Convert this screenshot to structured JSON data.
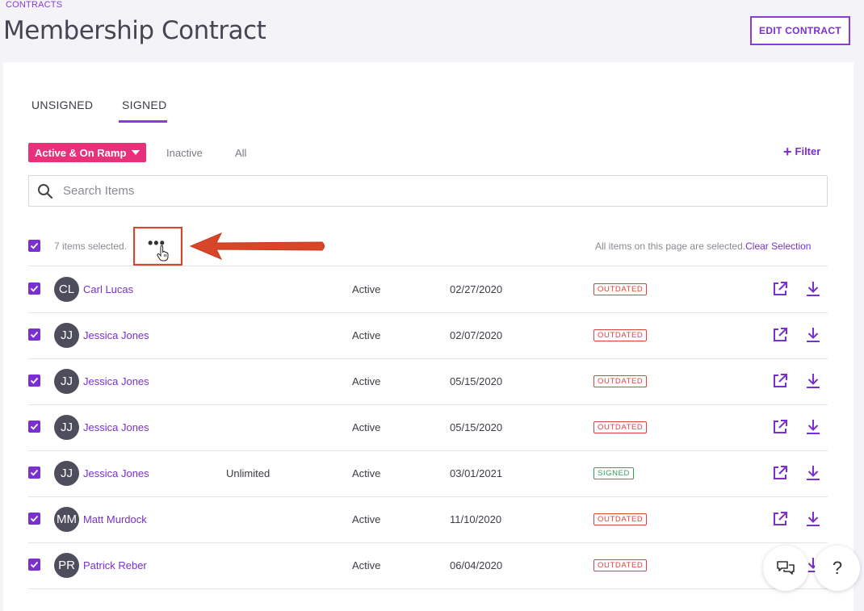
{
  "breadcrumb": "CONTRACTS",
  "page_title": "Membership Contract",
  "edit_button": "EDIT CONTRACT",
  "tabs": [
    {
      "label": "UNSIGNED",
      "active": false
    },
    {
      "label": "SIGNED",
      "active": true
    }
  ],
  "status_filter": {
    "selected": "Active & On Ramp",
    "options": [
      "Inactive",
      "All"
    ]
  },
  "filter_button": "Filter",
  "search": {
    "placeholder": "Search Items",
    "value": ""
  },
  "selection": {
    "count_text": "7 items selected.",
    "more_label": "•••",
    "info_text": "All items on this page are selected.",
    "clear_label": "Clear Selection"
  },
  "colors": {
    "accent": "#7a2fd0",
    "pill": "#e8317b",
    "outdated": "#e0413a",
    "signed": "#2ea160",
    "arrow": "#d8462a"
  },
  "rows": [
    {
      "initials": "CL",
      "name": "Carl Lucas",
      "plan": "",
      "status": "Active",
      "date": "02/27/2020",
      "badge": "OUTDATED",
      "checked": true
    },
    {
      "initials": "JJ",
      "name": "Jessica Jones",
      "plan": "",
      "status": "Active",
      "date": "02/07/2020",
      "badge": "OUTDATED",
      "checked": true
    },
    {
      "initials": "JJ",
      "name": "Jessica Jones",
      "plan": "",
      "status": "Active",
      "date": "05/15/2020",
      "badge": "OUTDATED",
      "checked": true
    },
    {
      "initials": "JJ",
      "name": "Jessica Jones",
      "plan": "",
      "status": "Active",
      "date": "05/15/2020",
      "badge": "OUTDATED",
      "checked": true
    },
    {
      "initials": "JJ",
      "name": "Jessica Jones",
      "plan": "Unlimited",
      "status": "Active",
      "date": "03/01/2021",
      "badge": "SIGNED",
      "checked": true
    },
    {
      "initials": "MM",
      "name": "Matt Murdock",
      "plan": "",
      "status": "Active",
      "date": "11/10/2020",
      "badge": "OUTDATED",
      "checked": true
    },
    {
      "initials": "PR",
      "name": "Patrick Reber",
      "plan": "",
      "status": "Active",
      "date": "06/04/2020",
      "badge": "OUTDATED",
      "checked": true
    }
  ],
  "help_label": "?"
}
